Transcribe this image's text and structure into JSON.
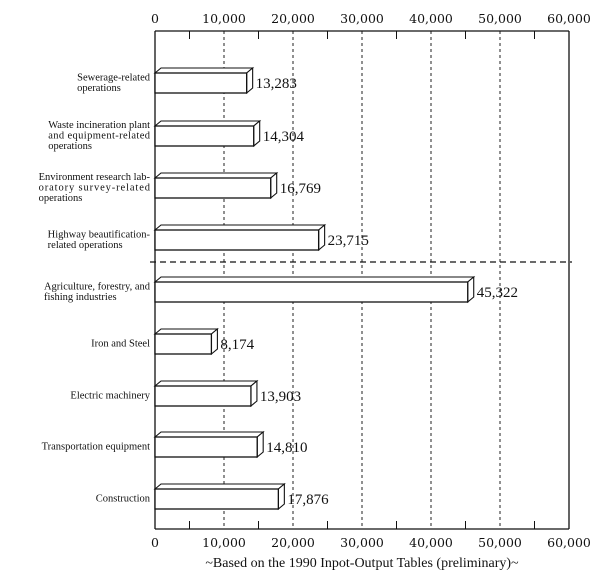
{
  "chart_data": {
    "type": "bar",
    "orientation": "horizontal",
    "categories": [
      "Sewerage-related operations",
      "Waste incineration plant and equipment-related operations",
      "Environment research laboratory survey-related operations",
      "Highway beautification-related operations",
      "Agriculture, forestry, and fishing industries",
      "Iron and Steel",
      "Electric machinery",
      "Transportation equipment",
      "Construction"
    ],
    "category_lines": [
      [
        "Sewerage-related",
        "operations"
      ],
      [
        "Waste incineration plant",
        "and equipment-related",
        "operations"
      ],
      [
        "Environment research lab-",
        "oratory survey-related",
        "operations"
      ],
      [
        "Highway beautification-",
        "related operations"
      ],
      [
        "Agriculture, forestry, and",
        "fishing industries"
      ],
      [
        "Iron and Steel"
      ],
      [
        "Electric machinery"
      ],
      [
        "Transportation equipment"
      ],
      [
        "Construction"
      ]
    ],
    "values": [
      13283,
      14304,
      16769,
      23715,
      45322,
      8174,
      13903,
      14810,
      17876
    ],
    "value_labels": [
      "13,283",
      "14,304",
      "16,769",
      "23,715",
      "45,322",
      "8,174",
      "13,903",
      "14,810",
      "17,876"
    ],
    "separator_after_index": 3,
    "title": "",
    "xlabel": "~Based on the 1990 Inpot-Output Tables (preliminary)~",
    "ylabel": "",
    "xlim": [
      0,
      60000
    ],
    "xticks": [
      0,
      10000,
      20000,
      30000,
      40000,
      50000,
      60000
    ],
    "xtick_labels": [
      "0",
      "10,000",
      "20,000",
      "30,000",
      "40,000",
      "50,000",
      "60,000"
    ],
    "minor_tick_step": 5000,
    "grid": "vertical dashed at major ticks",
    "axis_labels_position": "top and bottom",
    "bar_style": "3D white bars with black outline",
    "legend": null
  }
}
